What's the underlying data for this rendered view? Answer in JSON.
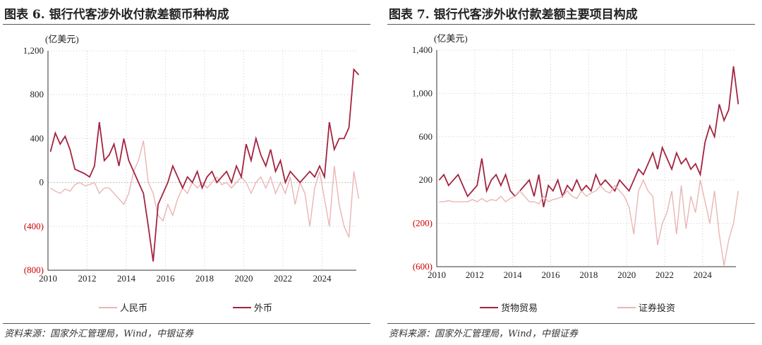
{
  "colors": {
    "dark": "#a3243f",
    "light": "#eab5b5",
    "zero_line": "#333"
  },
  "chart_data": [
    {
      "type": "line",
      "title": "图表 6. 银行代客涉外收付款差额币种构成",
      "unit_label": "(亿美元)",
      "ylim": [
        -800,
        1200
      ],
      "yticks": [
        1200,
        800,
        400,
        0,
        -400,
        -800
      ],
      "ytick_labels": [
        "1,200",
        "800",
        "400",
        "0",
        "(400)",
        "(800)"
      ],
      "xlim": [
        2010,
        2025.75
      ],
      "xticks": [
        "2010",
        "2012",
        "2014",
        "2016",
        "2018",
        "2020",
        "2022",
        "2024"
      ],
      "grid": true,
      "legend": "bottom",
      "x_step": "quarterly from 2010 Q1",
      "series": [
        {
          "name": "人民币",
          "color": "#eab5b5",
          "values": [
            -50,
            -80,
            -100,
            -60,
            -80,
            -20,
            0,
            -30,
            -20,
            0,
            -100,
            -50,
            -50,
            -100,
            -150,
            -200,
            -100,
            100,
            200,
            380,
            0,
            -100,
            -300,
            -350,
            -200,
            -300,
            -150,
            -50,
            -100,
            0,
            -50,
            0,
            -50,
            0,
            50,
            -20,
            0,
            -50,
            0,
            50,
            0,
            -100,
            0,
            50,
            -50,
            50,
            -100,
            0,
            -100,
            50,
            -200,
            0,
            -100,
            -400,
            -50,
            100,
            -150,
            -400,
            150,
            -200,
            -400,
            -500,
            100,
            -150
          ]
        },
        {
          "name": "外币",
          "color": "#a3243f",
          "values": [
            280,
            450,
            350,
            420,
            300,
            120,
            100,
            80,
            50,
            150,
            550,
            200,
            250,
            350,
            150,
            400,
            200,
            100,
            0,
            -100,
            -400,
            -720,
            -200,
            -100,
            0,
            150,
            50,
            -50,
            50,
            0,
            100,
            -50,
            50,
            100,
            0,
            50,
            100,
            0,
            150,
            50,
            350,
            200,
            400,
            250,
            150,
            300,
            100,
            200,
            0,
            100,
            50,
            0,
            50,
            100,
            50,
            150,
            50,
            550,
            300,
            400,
            400,
            500,
            1030,
            980
          ]
        }
      ]
    },
    {
      "type": "line",
      "title": "图表 7. 银行代客涉外收付款差额主要项目构成",
      "unit_label": "(亿美元)",
      "ylim": [
        -600,
        1400
      ],
      "yticks": [
        1400,
        1000,
        600,
        200,
        -200,
        -600
      ],
      "ytick_labels": [
        "1,400",
        "1,000",
        "600",
        "200",
        "(200)",
        "(600)"
      ],
      "xlim": [
        2010,
        2025.75
      ],
      "xticks": [
        "2010",
        "2012",
        "2014",
        "2016",
        "2018",
        "2020",
        "2022",
        "2024"
      ],
      "grid": true,
      "legend": "bottom",
      "x_step": "quarterly from 2010 Q1",
      "series": [
        {
          "name": "货物贸易",
          "color": "#a3243f",
          "values": [
            200,
            250,
            150,
            200,
            250,
            150,
            50,
            100,
            150,
            400,
            100,
            200,
            250,
            150,
            250,
            100,
            50,
            100,
            150,
            200,
            50,
            250,
            -50,
            150,
            100,
            200,
            50,
            150,
            100,
            200,
            100,
            150,
            100,
            250,
            150,
            200,
            150,
            100,
            200,
            150,
            100,
            200,
            300,
            250,
            350,
            450,
            300,
            500,
            400,
            300,
            450,
            350,
            400,
            300,
            350,
            250,
            550,
            700,
            600,
            900,
            750,
            850,
            1250,
            900
          ]
        },
        {
          "name": "证券投资",
          "color": "#eab5b5",
          "values": [
            0,
            0,
            10,
            0,
            0,
            0,
            0,
            20,
            0,
            30,
            0,
            20,
            10,
            50,
            0,
            30,
            50,
            100,
            50,
            0,
            0,
            -20,
            50,
            0,
            20,
            30,
            50,
            100,
            50,
            30,
            100,
            50,
            80,
            100,
            150,
            100,
            80,
            150,
            100,
            50,
            -50,
            -300,
            100,
            200,
            100,
            50,
            -400,
            -200,
            -100,
            100,
            -300,
            150,
            -250,
            50,
            -100,
            200,
            0,
            -200,
            100,
            -300,
            -590,
            -350,
            -200,
            100
          ]
        }
      ]
    }
  ],
  "source": "资料来源：国家外汇管理局，Wind，中银证券"
}
